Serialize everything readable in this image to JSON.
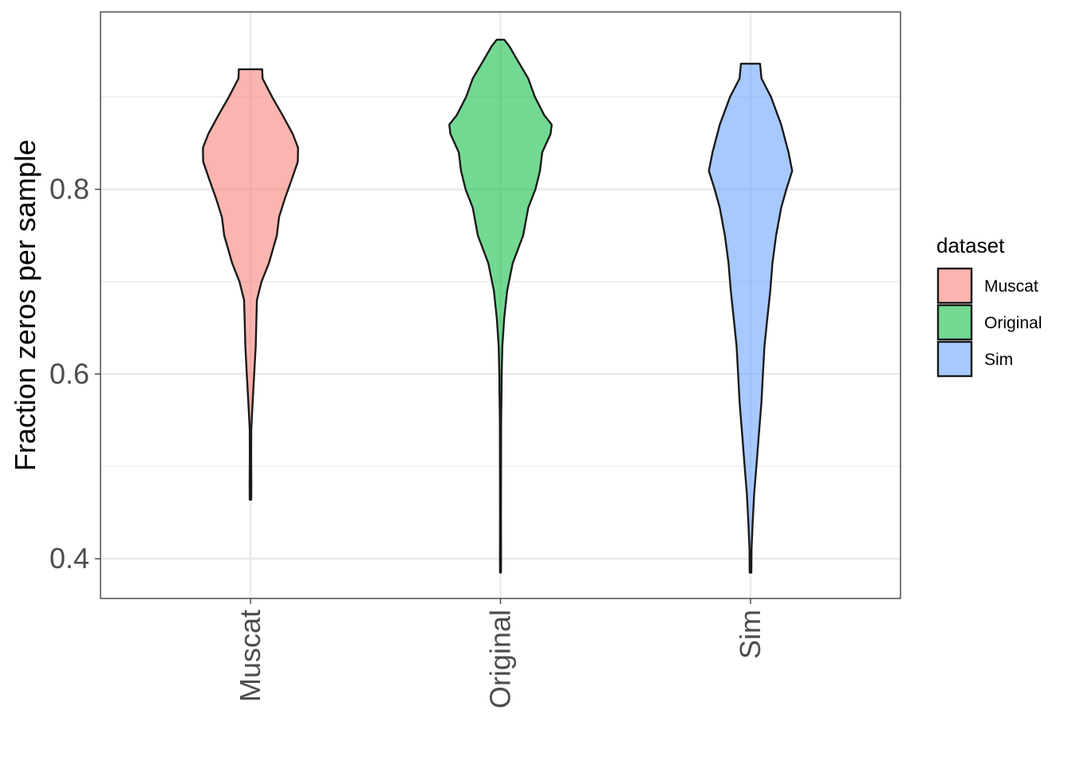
{
  "chart_data": {
    "type": "violin",
    "ylabel": "Fraction zeros per sample",
    "xlabel": "",
    "categories": [
      "Muscat",
      "Original",
      "Sim"
    ],
    "y_ticks": [
      0.4,
      0.6,
      0.8
    ],
    "y_tick_labels": [
      "0.4",
      "0.6",
      "0.8"
    ],
    "ylim": [
      0.357,
      0.992
    ],
    "grid": true,
    "legend": {
      "title": "dataset",
      "position": "right",
      "entries": [
        "Muscat",
        "Original",
        "Sim"
      ]
    },
    "colors": {
      "Muscat": "#F8766D",
      "Original": "#00BA38",
      "Sim": "#619CFF"
    },
    "fill_alpha": 0.55,
    "max_density_width": 0.45,
    "series": [
      {
        "name": "Muscat",
        "min": 0.464,
        "max": 0.93,
        "profile": [
          [
            0.464,
            0.0065
          ],
          [
            0.48,
            0.0075
          ],
          [
            0.51,
            0.006
          ],
          [
            0.54,
            0.0065
          ],
          [
            0.57,
            0.0195
          ],
          [
            0.6,
            0.033
          ],
          [
            0.63,
            0.046
          ],
          [
            0.66,
            0.0525
          ],
          [
            0.68,
            0.057
          ],
          [
            0.7,
            0.098
          ],
          [
            0.72,
            0.163
          ],
          [
            0.75,
            0.234
          ],
          [
            0.77,
            0.254
          ],
          [
            0.79,
            0.306
          ],
          [
            0.81,
            0.365
          ],
          [
            0.83,
            0.421
          ],
          [
            0.845,
            0.423
          ],
          [
            0.86,
            0.375
          ],
          [
            0.88,
            0.286
          ],
          [
            0.9,
            0.192
          ],
          [
            0.92,
            0.107
          ],
          [
            0.93,
            0.104
          ]
        ]
      },
      {
        "name": "Original",
        "min": 0.385,
        "max": 0.962,
        "profile": [
          [
            0.385,
            0.004
          ],
          [
            0.4,
            0.005
          ],
          [
            0.45,
            0.004
          ],
          [
            0.5,
            0.005
          ],
          [
            0.55,
            0.006
          ],
          [
            0.58,
            0.0095
          ],
          [
            0.6,
            0.0105
          ],
          [
            0.63,
            0.0165
          ],
          [
            0.66,
            0.0325
          ],
          [
            0.69,
            0.0585
          ],
          [
            0.72,
            0.1085
          ],
          [
            0.75,
            0.201
          ],
          [
            0.78,
            0.247
          ],
          [
            0.8,
            0.3105
          ],
          [
            0.82,
            0.351
          ],
          [
            0.84,
            0.3705
          ],
          [
            0.86,
            0.445
          ],
          [
            0.87,
            0.455
          ],
          [
            0.88,
            0.39
          ],
          [
            0.9,
            0.3055
          ],
          [
            0.92,
            0.247
          ],
          [
            0.94,
            0.1495
          ],
          [
            0.955,
            0.078
          ],
          [
            0.962,
            0.0325
          ]
        ]
      },
      {
        "name": "Sim",
        "min": 0.385,
        "max": 0.936,
        "profile": [
          [
            0.385,
            0.0075
          ],
          [
            0.41,
            0.009
          ],
          [
            0.44,
            0.0195
          ],
          [
            0.47,
            0.0325
          ],
          [
            0.5,
            0.052
          ],
          [
            0.53,
            0.0715
          ],
          [
            0.57,
            0.0975
          ],
          [
            0.6,
            0.1105
          ],
          [
            0.63,
            0.1235
          ],
          [
            0.66,
            0.1495
          ],
          [
            0.69,
            0.1755
          ],
          [
            0.72,
            0.195
          ],
          [
            0.75,
            0.2275
          ],
          [
            0.78,
            0.273
          ],
          [
            0.8,
            0.3185
          ],
          [
            0.82,
            0.3705
          ],
          [
            0.84,
            0.338
          ],
          [
            0.87,
            0.273
          ],
          [
            0.9,
            0.182
          ],
          [
            0.92,
            0.0975
          ],
          [
            0.936,
            0.0845
          ]
        ]
      }
    ]
  }
}
